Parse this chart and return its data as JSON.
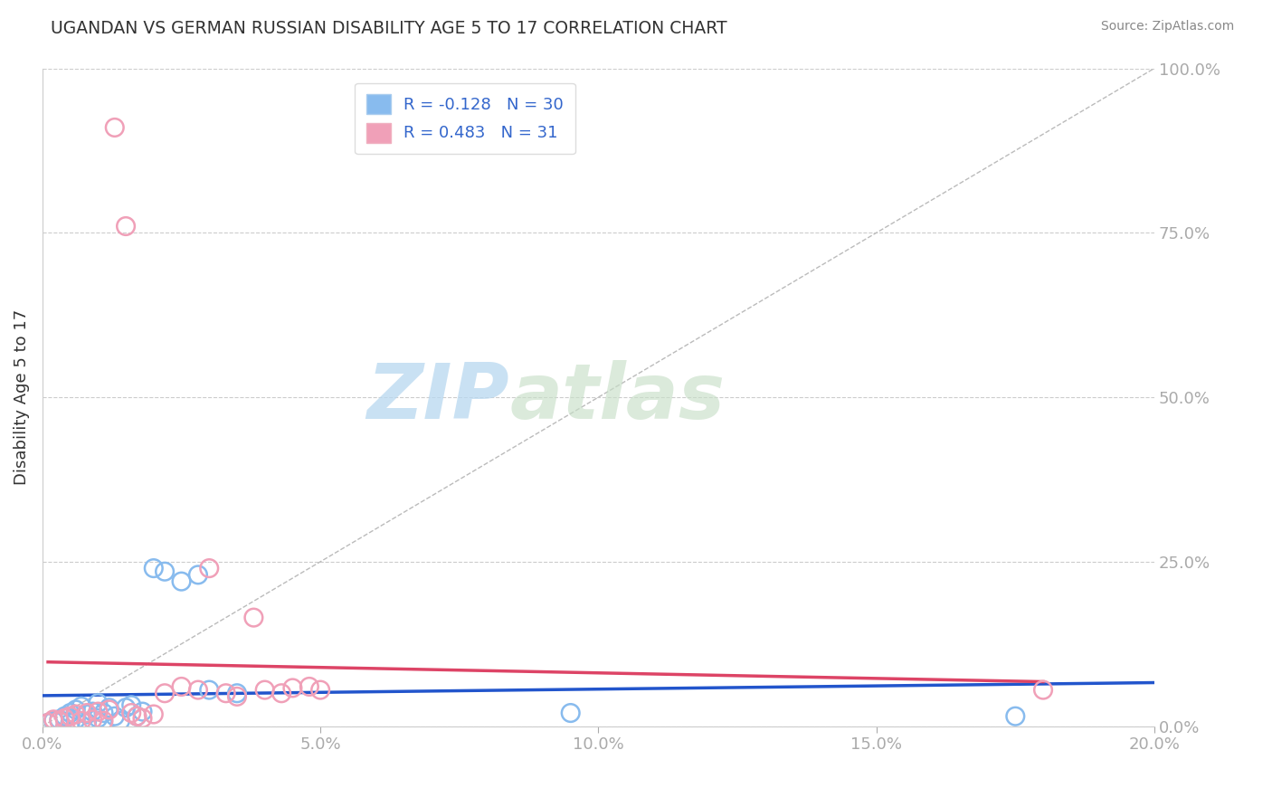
{
  "title": "UGANDAN VS GERMAN RUSSIAN DISABILITY AGE 5 TO 17 CORRELATION CHART",
  "source": "Source: ZipAtlas.com",
  "ylabel": "Disability Age 5 to 17",
  "xlabel_ticks": [
    "0.0%",
    "5.0%",
    "10.0%",
    "15.0%",
    "20.0%"
  ],
  "xlabel_vals": [
    0.0,
    0.05,
    0.1,
    0.15,
    0.2
  ],
  "ylabel_ticks": [
    "0.0%",
    "25.0%",
    "50.0%",
    "75.0%",
    "100.0%"
  ],
  "ylabel_vals": [
    0.0,
    0.25,
    0.5,
    0.75,
    1.0
  ],
  "xlim": [
    0.0,
    0.2
  ],
  "ylim": [
    0.0,
    1.0
  ],
  "ugandan_R": -0.128,
  "ugandan_N": 30,
  "german_russian_R": 0.483,
  "german_russian_N": 31,
  "ugandan_color": "#88bbee",
  "german_russian_color": "#f0a0b8",
  "ugandan_line_color": "#2255cc",
  "german_russian_line_color": "#dd4466",
  "diagonal_color": "#bbbbbb",
  "background_color": "#ffffff",
  "grid_color": "#cccccc",
  "title_color": "#333333",
  "axis_label_color": "#4488cc",
  "legend_R_color": "#3366cc",
  "ugandan_x": [
    0.001,
    0.002,
    0.003,
    0.004,
    0.005,
    0.005,
    0.006,
    0.006,
    0.007,
    0.008,
    0.008,
    0.009,
    0.01,
    0.01,
    0.011,
    0.012,
    0.013,
    0.014,
    0.015,
    0.016,
    0.017,
    0.018,
    0.02,
    0.022,
    0.025,
    0.028,
    0.03,
    0.035,
    0.095,
    0.175
  ],
  "ugandan_y": [
    0.005,
    0.008,
    0.01,
    0.015,
    0.02,
    0.005,
    0.025,
    0.01,
    0.03,
    0.018,
    0.005,
    0.022,
    0.012,
    0.035,
    0.02,
    0.028,
    0.015,
    0.008,
    0.028,
    0.032,
    0.015,
    0.022,
    0.24,
    0.235,
    0.22,
    0.23,
    0.055,
    0.05,
    0.02,
    0.015
  ],
  "german_russian_x": [
    0.001,
    0.002,
    0.003,
    0.004,
    0.005,
    0.006,
    0.007,
    0.008,
    0.009,
    0.01,
    0.011,
    0.012,
    0.013,
    0.015,
    0.016,
    0.017,
    0.018,
    0.02,
    0.022,
    0.025,
    0.028,
    0.03,
    0.033,
    0.035,
    0.038,
    0.04,
    0.043,
    0.045,
    0.048,
    0.05,
    0.18
  ],
  "german_russian_y": [
    0.005,
    0.01,
    0.008,
    0.012,
    0.015,
    0.018,
    0.008,
    0.02,
    0.01,
    0.022,
    0.008,
    0.025,
    0.91,
    0.76,
    0.02,
    0.015,
    0.012,
    0.018,
    0.05,
    0.06,
    0.055,
    0.24,
    0.05,
    0.045,
    0.165,
    0.055,
    0.05,
    0.058,
    0.06,
    0.055,
    0.055
  ],
  "watermark_zip": "ZIP",
  "watermark_atlas": "atlas",
  "watermark_color": "#c8dff0",
  "source_color": "#888888"
}
